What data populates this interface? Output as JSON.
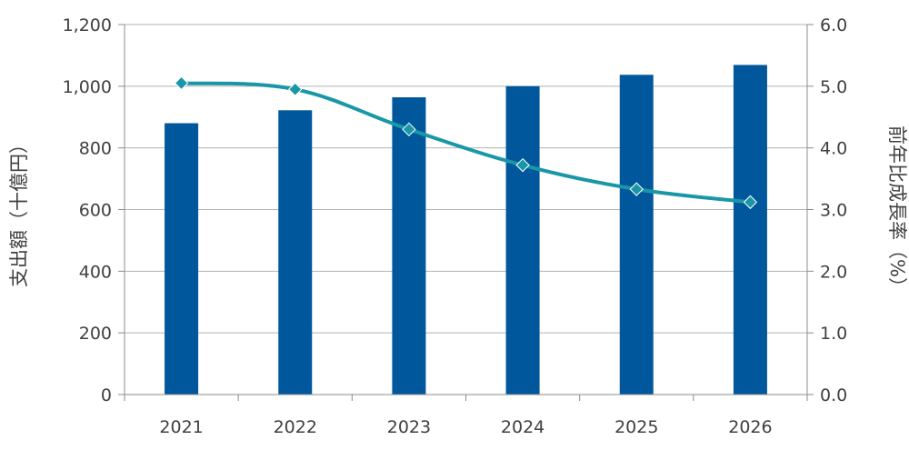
{
  "chart_data": {
    "type": "bar",
    "categories": [
      "2021",
      "2022",
      "2023",
      "2024",
      "2025",
      "2026"
    ],
    "series": [
      {
        "axis": "left",
        "mark": "bar",
        "color": "#00579C",
        "values": [
          880,
          922,
          964,
          1000,
          1037,
          1069
        ]
      },
      {
        "axis": "right",
        "mark": "line",
        "color": "#1A97A6",
        "values": [
          5.05,
          4.95,
          4.3,
          3.72,
          3.33,
          3.12
        ]
      }
    ],
    "ylabel": "支出額（十億円）",
    "ylabel_right": "前年比成長率（%）",
    "ylim": [
      0,
      1200
    ],
    "ylim_right": [
      0,
      6
    ],
    "y_ticks": [
      "0",
      "200",
      "400",
      "600",
      "800",
      "1,000",
      "1,200"
    ],
    "y_ticks_right": [
      "0.0",
      "1.0",
      "2.0",
      "3.0",
      "4.0",
      "5.0",
      "6.0"
    ],
    "grid": true,
    "legend": "none"
  }
}
